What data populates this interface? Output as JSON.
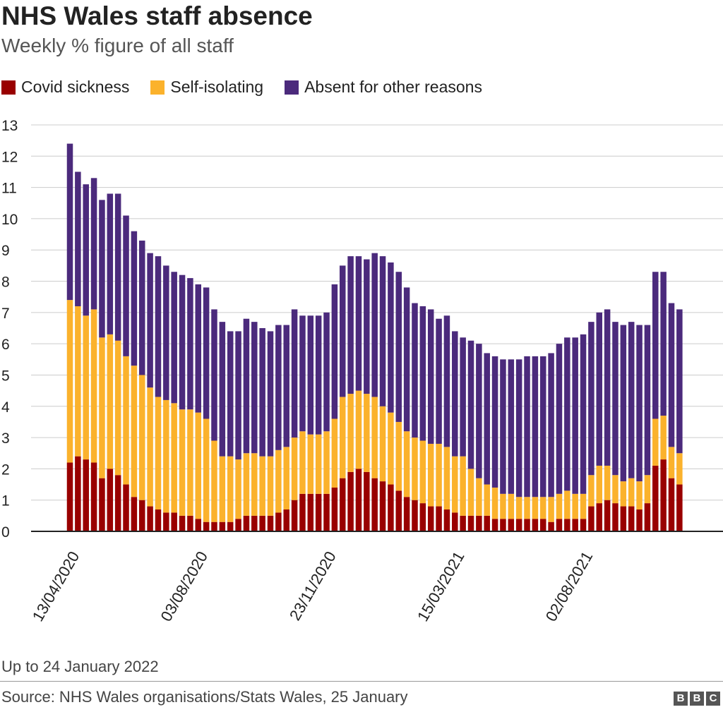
{
  "header": {
    "title": "NHS Wales staff absence",
    "subtitle": "Weekly % figure of all staff"
  },
  "footer": {
    "note": "Up to 24 January 2022",
    "source": "Source: NHS Wales organisations/Stats Wales, 25 January",
    "logo": [
      "B",
      "B",
      "C"
    ]
  },
  "colors": {
    "covid": "#990000",
    "isolating": "#fbb22c",
    "other": "#4b2a7c",
    "grid": "#cccccc",
    "axis": "#222222"
  },
  "chart_data": {
    "type": "bar",
    "stacked": true,
    "title": "NHS Wales staff absence",
    "subtitle": "Weekly % figure of all staff",
    "xlabel": "",
    "ylabel": "",
    "ylim": [
      0,
      13
    ],
    "yticks": [
      0,
      1,
      2,
      3,
      4,
      5,
      6,
      7,
      8,
      9,
      10,
      11,
      12,
      13
    ],
    "grid": true,
    "legend_position": "top-left",
    "x_tick_labels": [
      {
        "label": "13/04/2020",
        "index": 0
      },
      {
        "label": "03/08/2020",
        "index": 16
      },
      {
        "label": "23/11/2020",
        "index": 32
      },
      {
        "label": "15/03/2021",
        "index": 48
      },
      {
        "label": "02/08/2021",
        "index": 64
      }
    ],
    "series": [
      {
        "name": "Covid sickness",
        "color": "#990000",
        "values": [
          2.2,
          2.4,
          2.3,
          2.2,
          1.7,
          2.0,
          1.8,
          1.5,
          1.1,
          1.0,
          0.8,
          0.7,
          0.6,
          0.6,
          0.5,
          0.5,
          0.4,
          0.3,
          0.3,
          0.3,
          0.3,
          0.4,
          0.5,
          0.5,
          0.5,
          0.5,
          0.6,
          0.7,
          1.0,
          1.2,
          1.2,
          1.2,
          1.2,
          1.4,
          1.7,
          1.9,
          2.0,
          1.9,
          1.7,
          1.6,
          1.5,
          1.3,
          1.1,
          1.0,
          0.9,
          0.8,
          0.8,
          0.7,
          0.6,
          0.5,
          0.5,
          0.5,
          0.5,
          0.4,
          0.4,
          0.4,
          0.4,
          0.4,
          0.4,
          0.4,
          0.3,
          0.4,
          0.4,
          0.4,
          0.4,
          0.8,
          0.9,
          1.0,
          0.9,
          0.8,
          0.8,
          0.7,
          0.9,
          2.1,
          2.3,
          1.7,
          1.5
        ]
      },
      {
        "name": "Self-isolating",
        "color": "#fbb22c",
        "values": [
          5.2,
          4.8,
          4.6,
          4.9,
          4.5,
          4.3,
          4.3,
          4.1,
          4.2,
          4.0,
          3.8,
          3.6,
          3.6,
          3.5,
          3.4,
          3.4,
          3.4,
          3.3,
          2.6,
          2.1,
          2.1,
          1.9,
          2.0,
          2.0,
          1.9,
          1.9,
          2.0,
          2.0,
          2.0,
          2.0,
          1.9,
          1.9,
          2.0,
          2.2,
          2.6,
          2.5,
          2.5,
          2.5,
          2.6,
          2.4,
          2.3,
          2.2,
          2.1,
          2.0,
          2.0,
          2.0,
          2.0,
          2.0,
          1.8,
          1.9,
          1.5,
          1.2,
          1.0,
          1.0,
          0.8,
          0.8,
          0.7,
          0.7,
          0.7,
          0.7,
          0.8,
          0.8,
          0.9,
          0.8,
          0.8,
          1.0,
          1.2,
          1.1,
          0.9,
          0.8,
          0.9,
          0.9,
          0.9,
          1.5,
          1.4,
          1.0,
          1.0
        ]
      },
      {
        "name": "Absent for other reasons",
        "color": "#4b2a7c",
        "values": [
          5.0,
          4.3,
          4.2,
          4.2,
          4.4,
          4.5,
          4.7,
          4.5,
          4.3,
          4.3,
          4.3,
          4.5,
          4.3,
          4.2,
          4.3,
          4.2,
          4.1,
          4.2,
          4.2,
          4.3,
          4.0,
          4.1,
          4.3,
          4.2,
          4.1,
          4.0,
          4.0,
          3.9,
          4.1,
          3.7,
          3.8,
          3.8,
          3.8,
          4.3,
          4.2,
          4.4,
          4.3,
          4.3,
          4.6,
          4.8,
          4.8,
          4.8,
          4.6,
          4.3,
          4.3,
          4.3,
          4.0,
          4.2,
          4.0,
          3.8,
          4.1,
          4.3,
          4.2,
          4.2,
          4.3,
          4.3,
          4.4,
          4.5,
          4.5,
          4.5,
          4.6,
          4.8,
          4.9,
          5.0,
          5.1,
          4.9,
          4.9,
          5.0,
          4.9,
          5.0,
          5.0,
          5.0,
          4.8,
          4.7,
          4.6,
          4.6,
          4.6
        ]
      }
    ]
  }
}
